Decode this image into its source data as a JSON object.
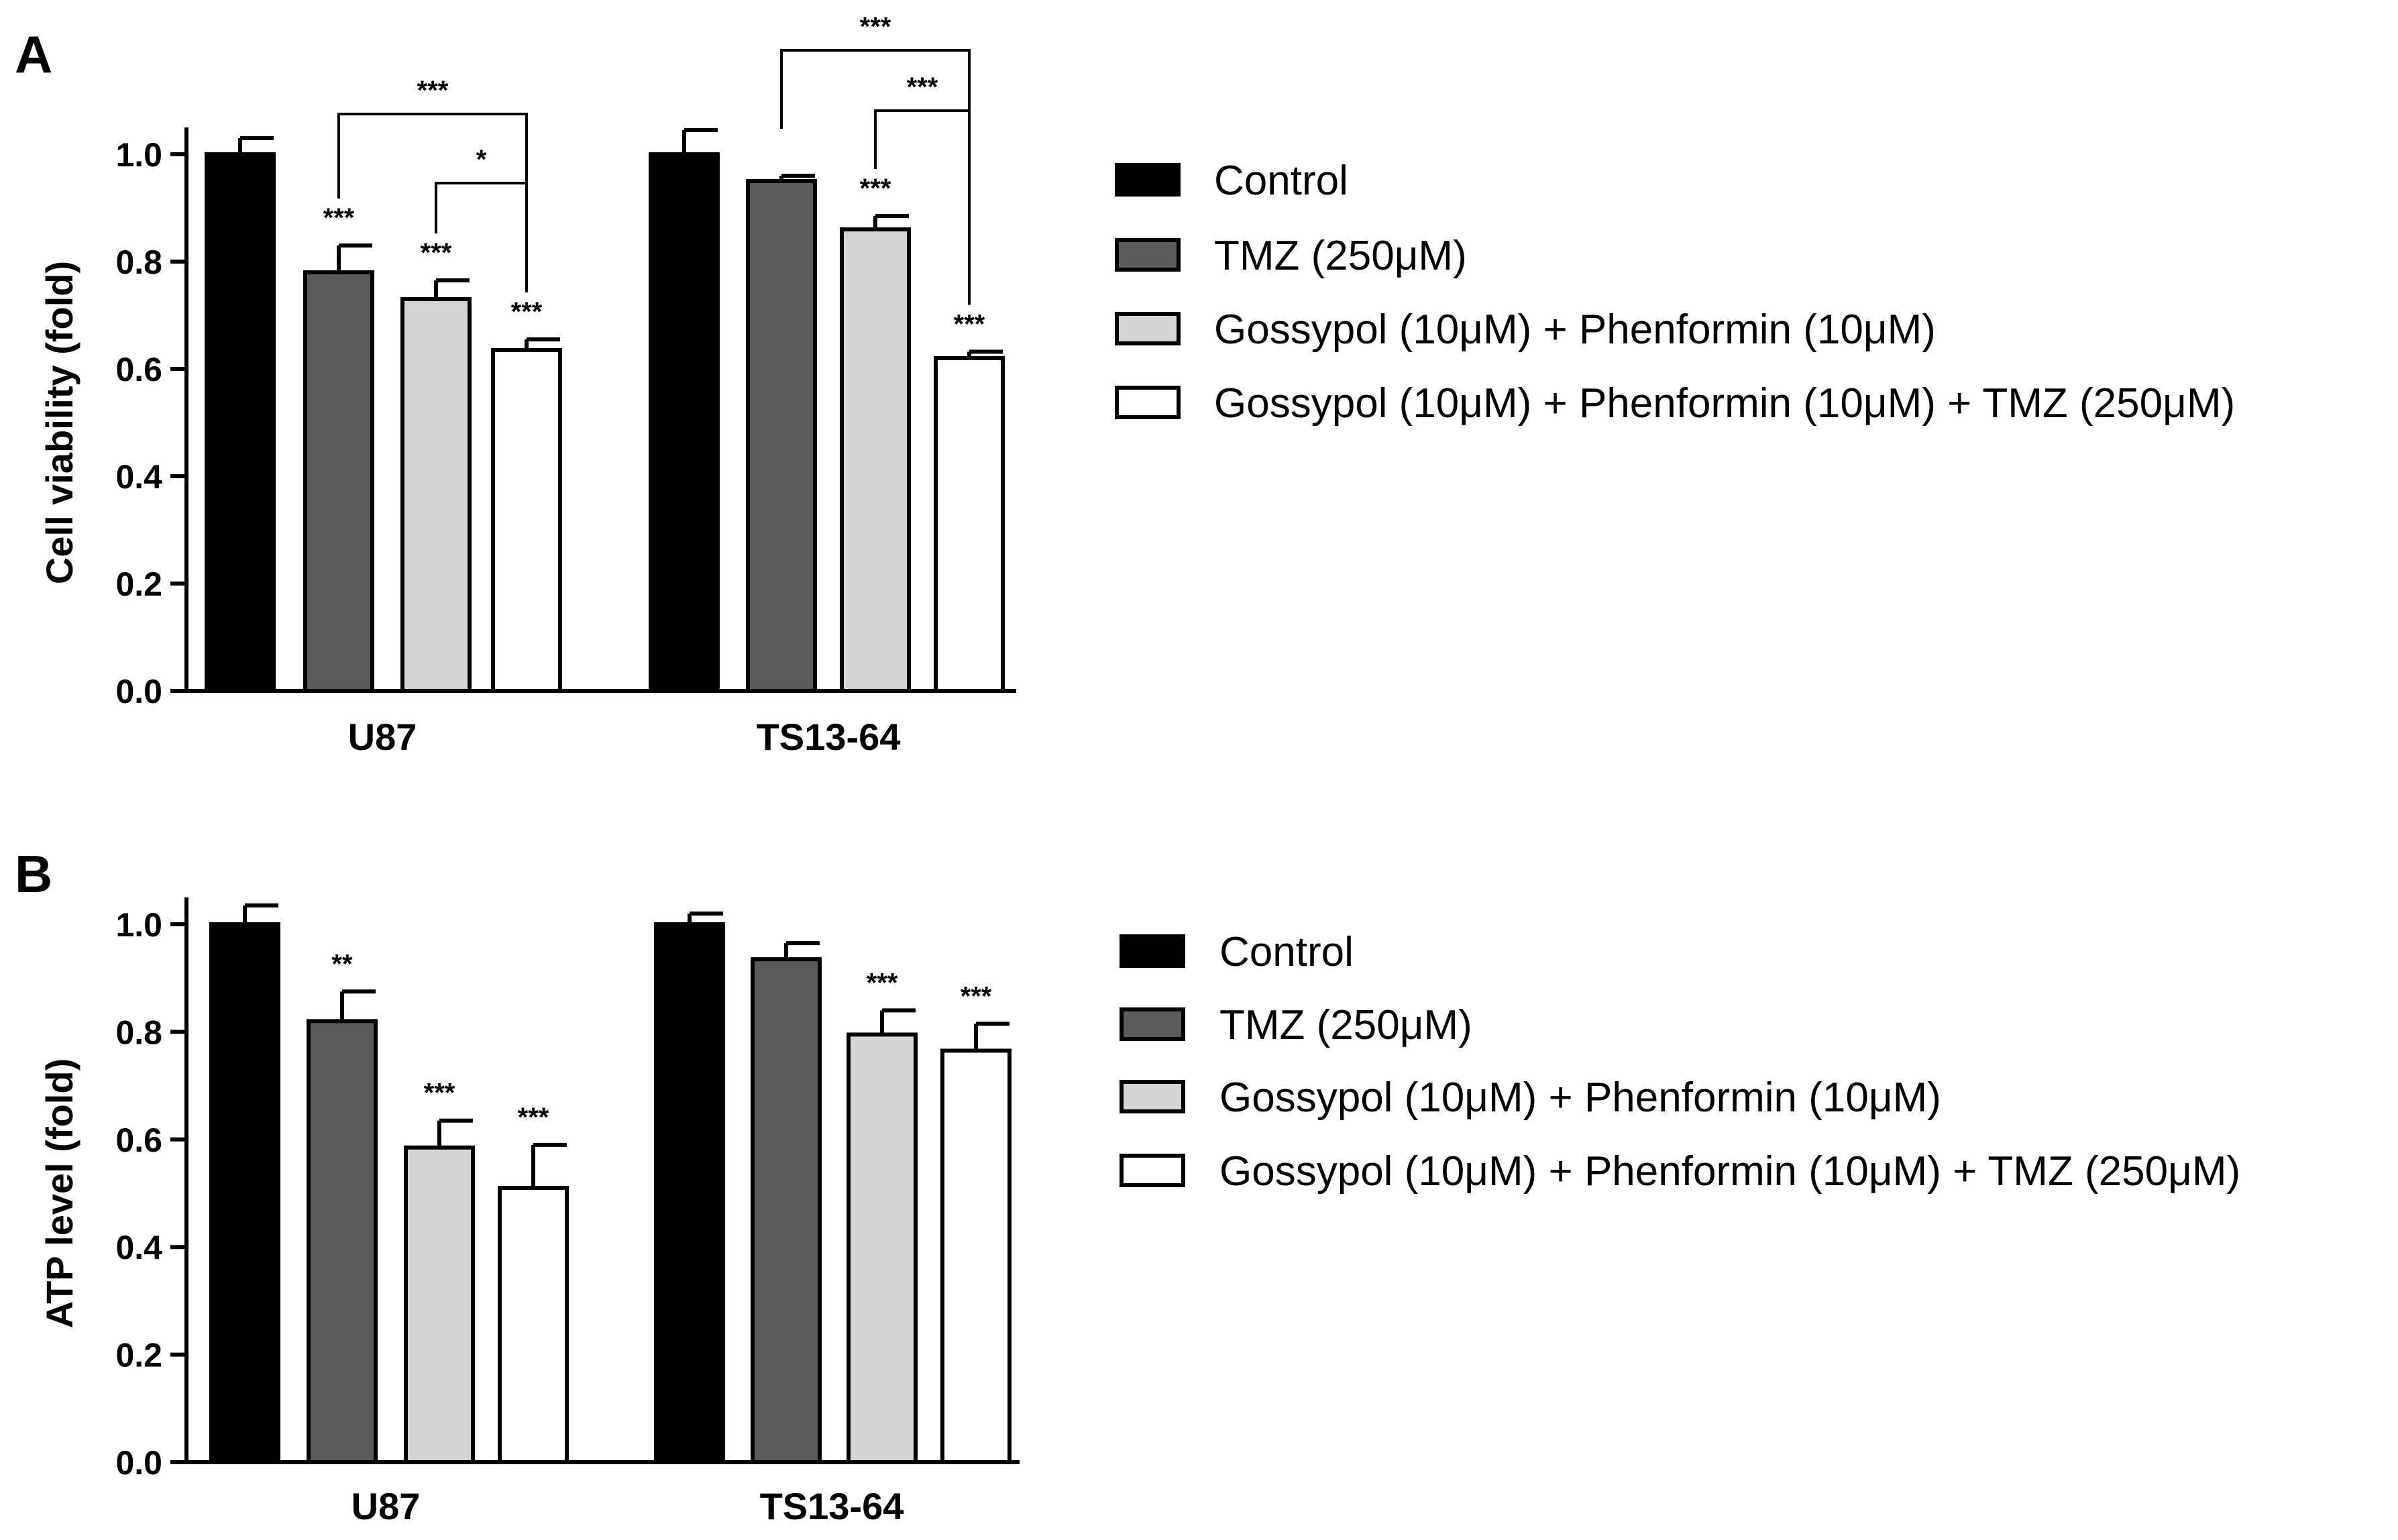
{
  "colors": {
    "control": "#000000",
    "tmz": "#5a5a5a",
    "gossypol_phenformin": "#d4d4d4",
    "combo": "#ffffff",
    "stroke": "#000000"
  },
  "chart_data": [
    {
      "type": "bar",
      "panel_label": "A",
      "ylabel": "Cell viability (fold)",
      "xlabel": "",
      "ylim": [
        0,
        1.0
      ],
      "yticks": [
        "0.0",
        "0.2",
        "0.4",
        "0.6",
        "0.8",
        "1.0"
      ],
      "categories": [
        "U87",
        "TS13-64"
      ],
      "series": [
        {
          "name": "Control",
          "values": [
            1.0,
            1.0
          ],
          "errors": [
            0.03,
            0.045
          ],
          "sig": [
            "",
            ""
          ]
        },
        {
          "name": "TMZ (250μM)",
          "values": [
            0.78,
            0.95
          ],
          "errors": [
            0.05,
            0.01
          ],
          "sig": [
            "***",
            ""
          ]
        },
        {
          "name": "Gossypol (10μM) + Phenformin (10μM)",
          "values": [
            0.73,
            0.86
          ],
          "errors": [
            0.035,
            0.025
          ],
          "sig": [
            "***",
            "***"
          ]
        },
        {
          "name": "Gossypol (10μM) + Phenformin (10μM) + TMZ (250μM)",
          "values": [
            0.635,
            0.62
          ],
          "errors": [
            0.02,
            0.012
          ],
          "sig": [
            "***",
            "***"
          ]
        }
      ],
      "brackets": [
        {
          "category": 0,
          "from": 1,
          "to": 3,
          "label": "***"
        },
        {
          "category": 0,
          "from": 2,
          "to": 3,
          "label": "*"
        },
        {
          "category": 1,
          "from": 1,
          "to": 3,
          "label": "***"
        },
        {
          "category": 1,
          "from": 2,
          "to": 3,
          "label": "***"
        }
      ],
      "legend_position": "right"
    },
    {
      "type": "bar",
      "panel_label": "B",
      "ylabel": "ATP level (fold)",
      "xlabel": "",
      "ylim": [
        0,
        1.0
      ],
      "yticks": [
        "0.0",
        "0.2",
        "0.4",
        "0.6",
        "0.8",
        "1.0"
      ],
      "categories": [
        "U87",
        "TS13-64"
      ],
      "series": [
        {
          "name": "Control",
          "values": [
            1.0,
            1.0
          ],
          "errors": [
            0.035,
            0.02
          ],
          "sig": [
            "",
            ""
          ]
        },
        {
          "name": "TMZ (250μM)",
          "values": [
            0.82,
            0.935
          ],
          "errors": [
            0.055,
            0.03
          ],
          "sig": [
            "**",
            ""
          ]
        },
        {
          "name": "Gossypol (10μM) + Phenformin (10μM)",
          "values": [
            0.585,
            0.795
          ],
          "errors": [
            0.05,
            0.045
          ],
          "sig": [
            "***",
            "***"
          ]
        },
        {
          "name": "Gossypol (10μM) + Phenformin (10μM) + TMZ (250μM)",
          "values": [
            0.51,
            0.765
          ],
          "errors": [
            0.08,
            0.05
          ],
          "sig": [
            "***",
            "***"
          ]
        }
      ],
      "brackets": [],
      "legend_position": "right"
    }
  ]
}
